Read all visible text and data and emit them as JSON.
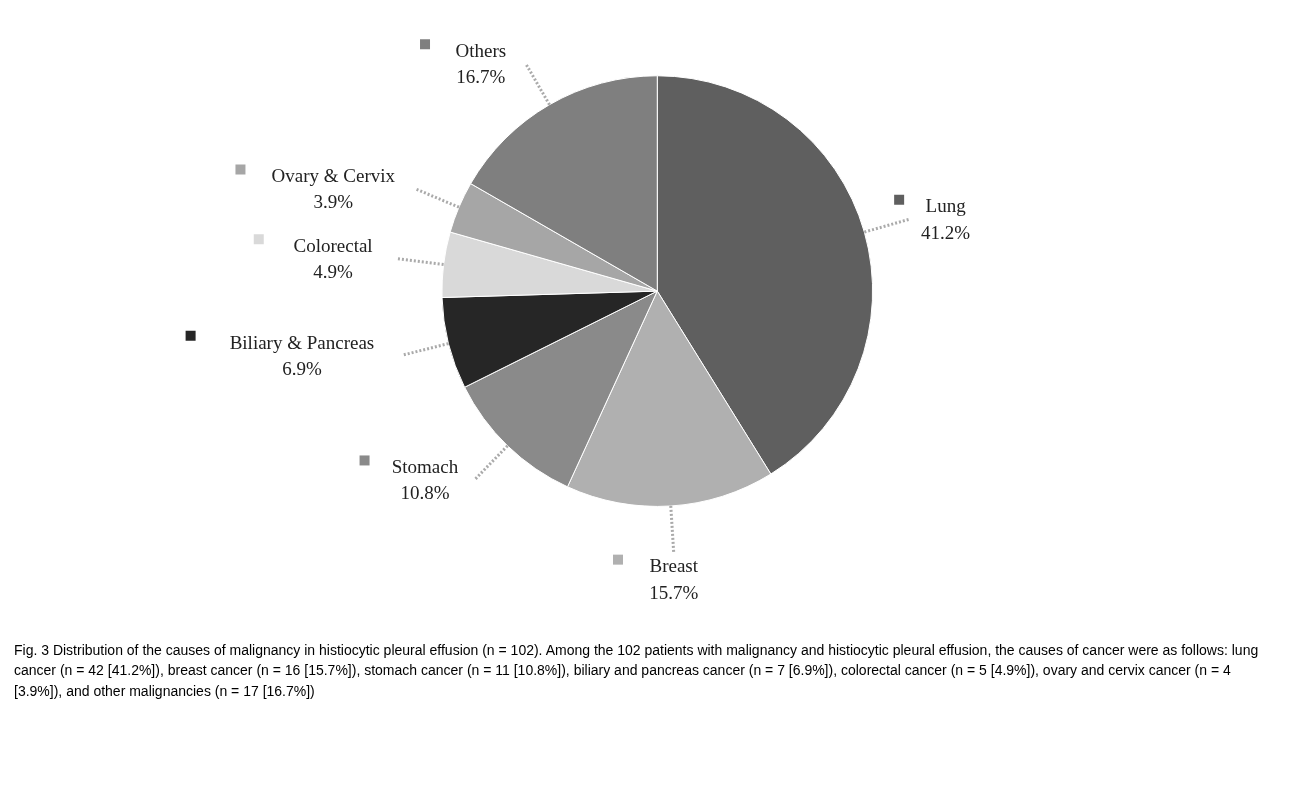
{
  "chart_data": {
    "type": "pie",
    "categories": [
      "Lung",
      "Breast",
      "Stomach",
      "Biliary & Pancreas",
      "Colorectal",
      "Ovary & Cervix",
      "Others"
    ],
    "values": [
      41.2,
      15.7,
      10.8,
      6.9,
      4.9,
      3.9,
      16.7
    ],
    "colors": [
      "#5f5f5f",
      "#b0b0b0",
      "#8a8a8a",
      "#262626",
      "#d9d9d9",
      "#a6a6a6",
      "#7f7f7f"
    ],
    "value_labels": [
      "41.2%",
      "15.7%",
      "10.8%",
      "6.9%",
      "4.9%",
      "3.9%",
      "16.7%"
    ],
    "legend": "bottom left",
    "annotations": [
      "Fig. 3 Distribution of the causes of malignancy in histiocytic pleural effusion (n = 102). Among the 102 patients with malignancy and histiocytic pleural effusion, the causes of cancer were as follows: lung cancer (n = 42 [41.2%]), breast cancer (n = 16 [15.7%]), stomach cancer (n = 11 [10.8%]), biliary and pancreas cancer (n = 7 [6.9%]), colorectal cancer (n = 5 [4.9%]), ovary and cervix cancer (n = 4 [3.9%]), and other malignancies (n = 17 [16.7%])"
    ]
  }
}
